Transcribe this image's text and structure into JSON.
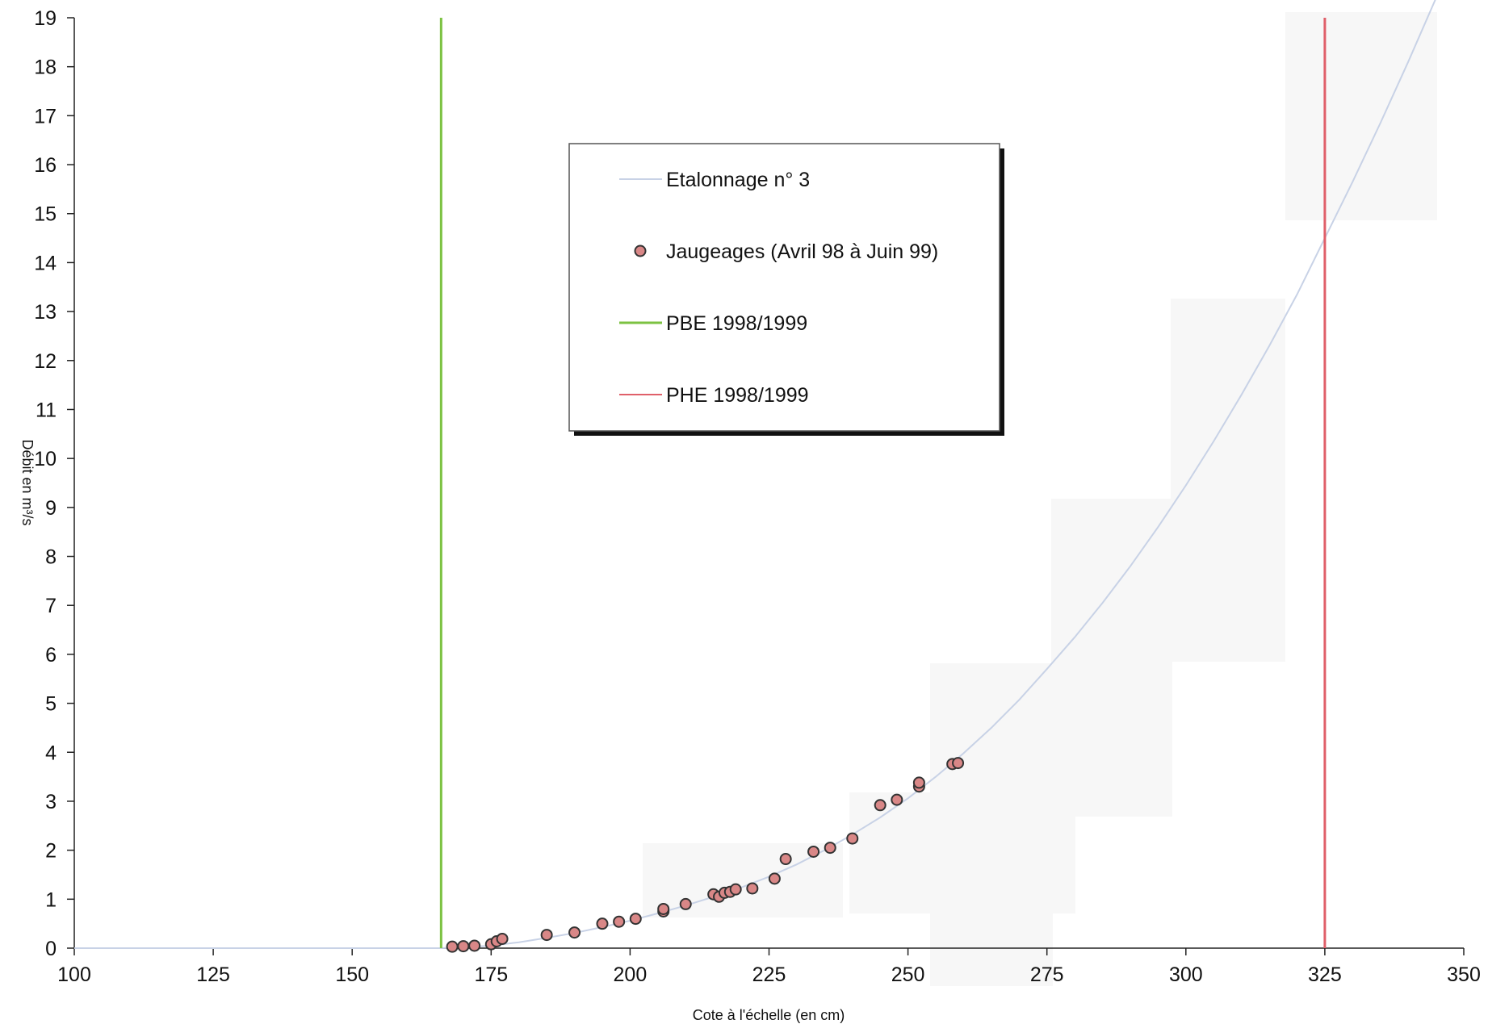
{
  "chart_data": {
    "type": "scatter",
    "xlabel": "Cote à l'échelle (en cm)",
    "ylabel": "Débit en m³/s",
    "xlim": [
      100,
      350
    ],
    "ylim": [
      0,
      19
    ],
    "x_ticks": [
      "100",
      "125",
      "150",
      "175",
      "200",
      "225",
      "250",
      "275",
      "300",
      "325",
      "350"
    ],
    "y_ticks": [
      "0",
      "1",
      "2",
      "3",
      "4",
      "5",
      "6",
      "7",
      "8",
      "9",
      "10",
      "11",
      "12",
      "13",
      "14",
      "15",
      "16",
      "17",
      "18",
      "19"
    ],
    "grid": false,
    "legend_position": "top-center",
    "legend": [
      {
        "label": "Etalonnage n° 3",
        "kind": "line",
        "color": "#c8d2e6"
      },
      {
        "label": "Jaugeages (Avril 98 à Juin 99)",
        "kind": "marker",
        "color": "#d98787"
      },
      {
        "label": "PBE 1998/1999",
        "kind": "line",
        "color": "#7cc242"
      },
      {
        "label": "PHE 1998/1999",
        "kind": "line",
        "color": "#e0606a"
      }
    ],
    "series": [
      {
        "name": "Etalonnage n° 3",
        "type": "line",
        "color": "#c8d2e6",
        "x": [
          100,
          166,
          170,
          175,
          180,
          185,
          190,
          195,
          200,
          205,
          210,
          215,
          220,
          225,
          230,
          235,
          240,
          245,
          250,
          255,
          260,
          265,
          270,
          275,
          280,
          285,
          290,
          295,
          300,
          305,
          310,
          315,
          320,
          325,
          330,
          335,
          340,
          345
        ],
        "y": [
          0,
          0,
          0.02,
          0.05,
          0.12,
          0.21,
          0.31,
          0.43,
          0.56,
          0.71,
          0.87,
          1.05,
          1.24,
          1.46,
          1.71,
          2.0,
          2.32,
          2.67,
          3.06,
          3.5,
          3.98,
          4.5,
          5.07,
          5.7,
          6.35,
          7.05,
          7.8,
          8.6,
          9.45,
          10.35,
          11.3,
          12.3,
          13.35,
          14.5,
          15.65,
          16.85,
          18.1,
          19.4
        ]
      },
      {
        "name": "Jaugeages (Avril 98 à Juin 99)",
        "type": "scatter",
        "color": "#d98787",
        "x": [
          168,
          170,
          172,
          175,
          176,
          177,
          185,
          190,
          195,
          198,
          201,
          206,
          206,
          210,
          215,
          216,
          217,
          218,
          219,
          222,
          226,
          228,
          233,
          236,
          240,
          245,
          248,
          252,
          252,
          258,
          259
        ],
        "y": [
          0.03,
          0.04,
          0.05,
          0.08,
          0.14,
          0.19,
          0.27,
          0.32,
          0.5,
          0.54,
          0.6,
          0.75,
          0.8,
          0.9,
          1.1,
          1.05,
          1.13,
          1.15,
          1.2,
          1.22,
          1.42,
          1.82,
          1.97,
          2.05,
          2.24,
          2.92,
          3.03,
          3.3,
          3.38,
          3.76,
          3.78
        ]
      },
      {
        "name": "PBE 1998/1999",
        "type": "vline",
        "color": "#7cc242",
        "x": 166
      },
      {
        "name": "PHE 1998/1999",
        "type": "vline",
        "color": "#e0606a",
        "x": 325
      }
    ]
  }
}
